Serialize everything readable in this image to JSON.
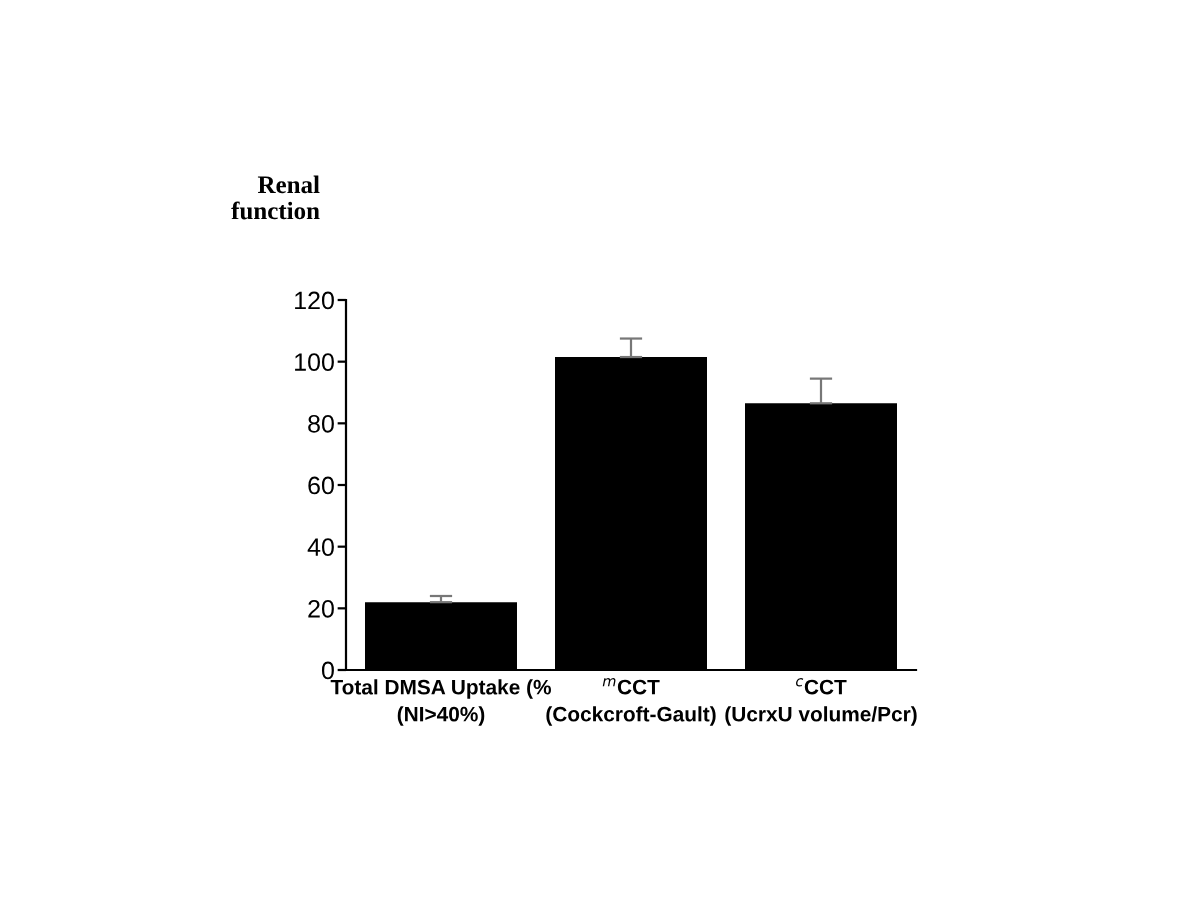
{
  "chart_data": {
    "type": "bar",
    "ylabel": "Renal\nfunction",
    "categories": [
      "Total DMSA Uptake (%\n(NI>40%)",
      "$^{m}$CCT\n(Cockcroft-Gault)",
      "$^{c}$CCT\n(UcrxU volume/Pcr)"
    ],
    "values": [
      22,
      101.5,
      86.5
    ],
    "errors": [
      [
        22,
        24
      ],
      [
        101.5,
        107.5
      ],
      [
        86.5,
        94.5
      ]
    ],
    "color": "#000000",
    "ylim": [
      0,
      120
    ],
    "yticks": [
      0,
      20,
      40,
      60,
      80,
      100,
      120
    ],
    "grid": false,
    "legend": false
  }
}
